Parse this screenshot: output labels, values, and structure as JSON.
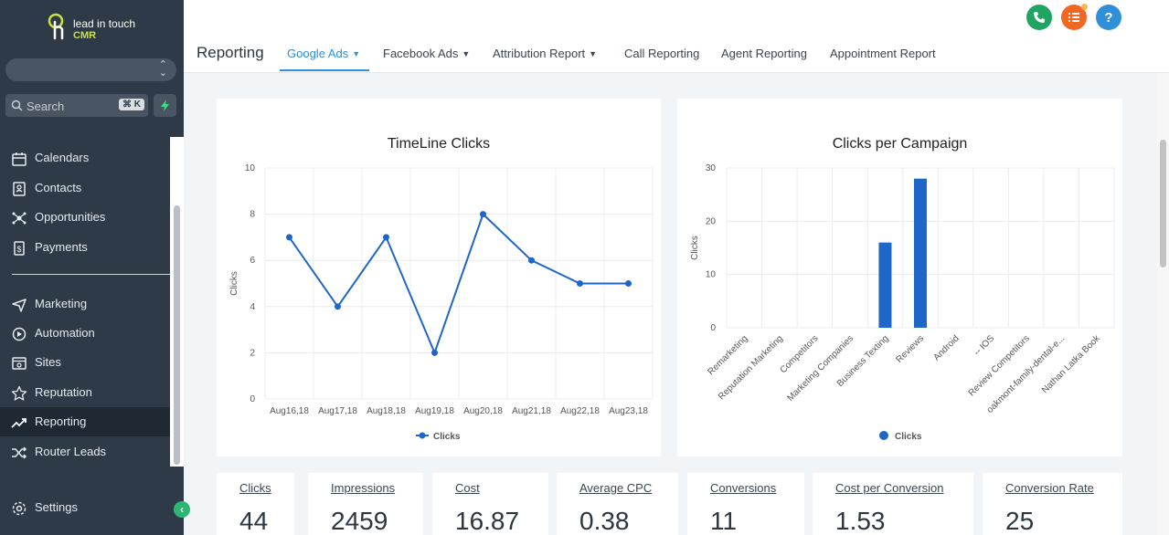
{
  "app": {
    "logo_line1": "lead in touch",
    "logo_line2": "CMR"
  },
  "sidebar": {
    "search_placeholder": "Search",
    "search_shortcut": "⌘ K",
    "items": [
      {
        "label": "Calendars",
        "icon": "calendar-icon"
      },
      {
        "label": "Contacts",
        "icon": "contacts-icon"
      },
      {
        "label": "Opportunities",
        "icon": "opportunities-icon"
      },
      {
        "label": "Payments",
        "icon": "payments-icon"
      },
      {
        "label": "Marketing",
        "icon": "marketing-icon"
      },
      {
        "label": "Automation",
        "icon": "automation-icon"
      },
      {
        "label": "Sites",
        "icon": "sites-icon"
      },
      {
        "label": "Reputation",
        "icon": "star-icon"
      },
      {
        "label": "Reporting",
        "icon": "trend-icon"
      },
      {
        "label": "Router Leads",
        "icon": "shuffle-icon"
      }
    ],
    "settings_label": "Settings",
    "active_item": "Reporting"
  },
  "header": {
    "title": "Reporting",
    "tabs": [
      {
        "label": "Google Ads",
        "dropdown": true
      },
      {
        "label": "Facebook Ads",
        "dropdown": true
      },
      {
        "label": "Attribution Report",
        "dropdown": true
      },
      {
        "label": "Call Reporting",
        "dropdown": false
      },
      {
        "label": "Agent Reporting",
        "dropdown": false
      },
      {
        "label": "Appointment Report",
        "dropdown": false
      }
    ],
    "active_tab": "Google Ads",
    "colors": {
      "phone": "#1fa463",
      "tasks": "#f26722",
      "help": "#2f8fd8",
      "accent": "#1f66c9"
    },
    "help_label": "?"
  },
  "chart_data": [
    {
      "type": "line",
      "title": "TimeLine Clicks",
      "ylabel": "Clicks",
      "xlabel": "",
      "x": [
        "Aug16,18",
        "Aug17,18",
        "Aug18,18",
        "Aug19,18",
        "Aug20,18",
        "Aug21,18",
        "Aug22,18",
        "Aug23,18"
      ],
      "series": [
        {
          "name": "Clicks",
          "values": [
            7,
            4,
            7,
            2,
            8,
            6,
            5,
            5
          ]
        }
      ],
      "ylim": [
        0,
        10
      ],
      "yticks": [
        0,
        2,
        4,
        6,
        8,
        10
      ],
      "grid": true,
      "legend": "bottom"
    },
    {
      "type": "bar",
      "title": "Clicks per Campaign",
      "ylabel": "Clicks",
      "xlabel": "",
      "categories": [
        "Remarketing",
        "Reputation Marketing",
        "Competitors",
        "Marketing Companies",
        "Business Texting",
        "Reviews",
        "Android",
        "-- IOS",
        "Review Competitors",
        "oakmont-family-dental-e...",
        "Nathan Latka Book"
      ],
      "series": [
        {
          "name": "Clicks",
          "values": [
            0,
            0,
            0,
            0,
            16,
            28,
            0,
            0,
            0,
            0,
            0
          ]
        }
      ],
      "ylim": [
        0,
        30
      ],
      "yticks": [
        0,
        10,
        20,
        30
      ],
      "grid": true,
      "legend": "bottom"
    }
  ],
  "stats": [
    {
      "label": "Clicks",
      "value": "44"
    },
    {
      "label": "Impressions",
      "value": "2459"
    },
    {
      "label": "Cost",
      "value": "16.87"
    },
    {
      "label": "Average CPC",
      "value": "0.38"
    },
    {
      "label": "Conversions",
      "value": "11"
    },
    {
      "label": "Cost per Conversion",
      "value": "1.53"
    },
    {
      "label": "Conversion Rate",
      "value": "25"
    }
  ]
}
